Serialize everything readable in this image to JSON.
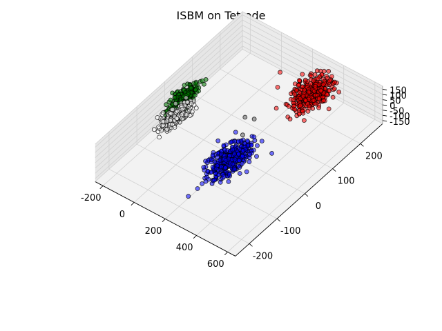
{
  "chart_data": {
    "type": "scatter",
    "projection": "3d",
    "title": "ISBM on Tetrode",
    "xlabel": "",
    "ylabel": "",
    "zlabel": "",
    "grid": true,
    "xlim": [
      -250,
      650
    ],
    "ylim": [
      -250,
      280
    ],
    "zlim": [
      -180,
      180
    ],
    "x_ticks": [
      "-200",
      "0",
      "200",
      "400",
      "600"
    ],
    "y_ticks": [
      "-200",
      "-100",
      "0",
      "100",
      "200"
    ],
    "z_ticks": [
      "-150",
      "-100",
      "-50",
      "0",
      "50",
      "100",
      "150"
    ],
    "x_tick_values": [
      -200,
      0,
      200,
      400,
      600
    ],
    "y_tick_values": [
      -200,
      -100,
      0,
      100,
      200
    ],
    "z_tick_values": [
      -150,
      -100,
      -50,
      0,
      50,
      100,
      150
    ],
    "series": [
      {
        "color": "#ff0000",
        "center": [
          310,
          215,
          0
        ],
        "spread": [
          40,
          30,
          40
        ],
        "n": 330,
        "outliers": [
          [
            90,
            225,
            0
          ],
          [
            420,
            230,
            10
          ],
          [
            400,
            190,
            -10
          ]
        ]
      },
      {
        "color": "#0000ff",
        "center": [
          280,
          -60,
          0
        ],
        "spread": [
          35,
          35,
          40
        ],
        "n": 380,
        "outliers": [
          [
            420,
            10,
            0
          ],
          [
            330,
            25,
            10
          ],
          [
            270,
            30,
            -10
          ]
        ]
      },
      {
        "color": "#008000",
        "center": [
          -150,
          10,
          70
        ],
        "spread": [
          20,
          25,
          25
        ],
        "n": 200,
        "outliers": [
          [
            -110,
            10,
            100
          ]
        ]
      },
      {
        "color": "#ffffff",
        "center": [
          -150,
          -15,
          -40
        ],
        "spread": [
          20,
          25,
          25
        ],
        "n": 200,
        "outliers": [
          [
            -190,
            -40,
            -60
          ]
        ]
      }
    ],
    "gray_points": [
      [
        150,
        65,
        0
      ],
      [
        200,
        70,
        10
      ],
      [
        215,
        20,
        -10
      ]
    ]
  }
}
